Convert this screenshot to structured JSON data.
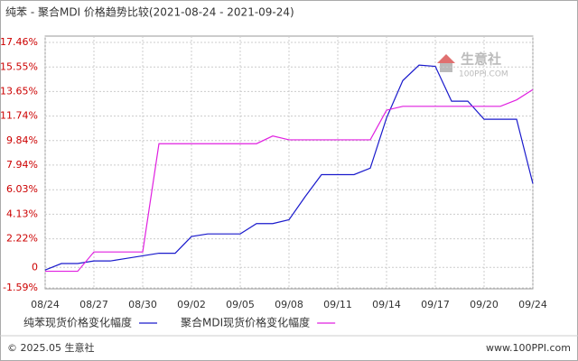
{
  "chart_data": {
    "type": "line",
    "title": "纯苯 - 聚合MDI 价格趋势比较(2021-08-24 - 2021-09-24)",
    "categories": [
      "08/24",
      null,
      null,
      "08/27",
      null,
      null,
      "08/30",
      null,
      null,
      "09/02",
      null,
      null,
      "09/05",
      null,
      null,
      "09/08",
      null,
      null,
      "09/11",
      null,
      null,
      "09/14",
      null,
      null,
      "09/17",
      null,
      null,
      "09/20",
      null,
      null,
      "09/24"
    ],
    "series": [
      {
        "name": "纯苯现货价格变化幅度",
        "color": "#1a1acc",
        "values": [
          -0.2,
          0.3,
          0.3,
          0.5,
          0.5,
          0.7,
          0.9,
          1.1,
          1.1,
          2.4,
          2.6,
          2.6,
          2.6,
          3.4,
          3.4,
          3.7,
          5.5,
          7.2,
          7.2,
          7.2,
          7.7,
          11.6,
          14.5,
          15.7,
          15.6,
          12.9,
          12.9,
          11.5,
          11.5,
          11.5,
          6.5
        ]
      },
      {
        "name": "聚合MDI现货价格变化幅度",
        "color": "#e020e0",
        "values": [
          -0.3,
          -0.3,
          -0.3,
          1.2,
          1.2,
          1.2,
          1.2,
          9.6,
          9.6,
          9.6,
          9.6,
          9.6,
          9.6,
          9.6,
          10.2,
          9.9,
          9.9,
          9.9,
          9.9,
          9.9,
          9.9,
          12.2,
          12.5,
          12.5,
          12.5,
          12.5,
          12.5,
          12.5,
          12.5,
          13.0,
          13.8
        ]
      }
    ],
    "ylim": [
      -1.59,
      17.46
    ],
    "yticks": [
      {
        "value": -1.59,
        "label": "-1.59%"
      },
      0,
      {
        "value": 2.22,
        "label": "2.22%"
      },
      {
        "value": 4.13,
        "label": "4.13%"
      },
      {
        "value": 6.03,
        "label": "6.03%"
      },
      {
        "value": 7.94,
        "label": "7.94%"
      },
      {
        "value": 9.84,
        "label": "9.84%"
      },
      {
        "value": 11.74,
        "label": "11.74%"
      },
      {
        "value": 13.65,
        "label": "13.65%"
      },
      {
        "value": 15.55,
        "label": "15.55%"
      },
      {
        "value": 17.46,
        "label": "17.46%"
      }
    ],
    "grid": true,
    "watermark": {
      "name": "生意社",
      "site": "100PPI.COM"
    },
    "footer": {
      "left": "© 2025.05 生意社",
      "right": "www.100PPI.com"
    }
  }
}
